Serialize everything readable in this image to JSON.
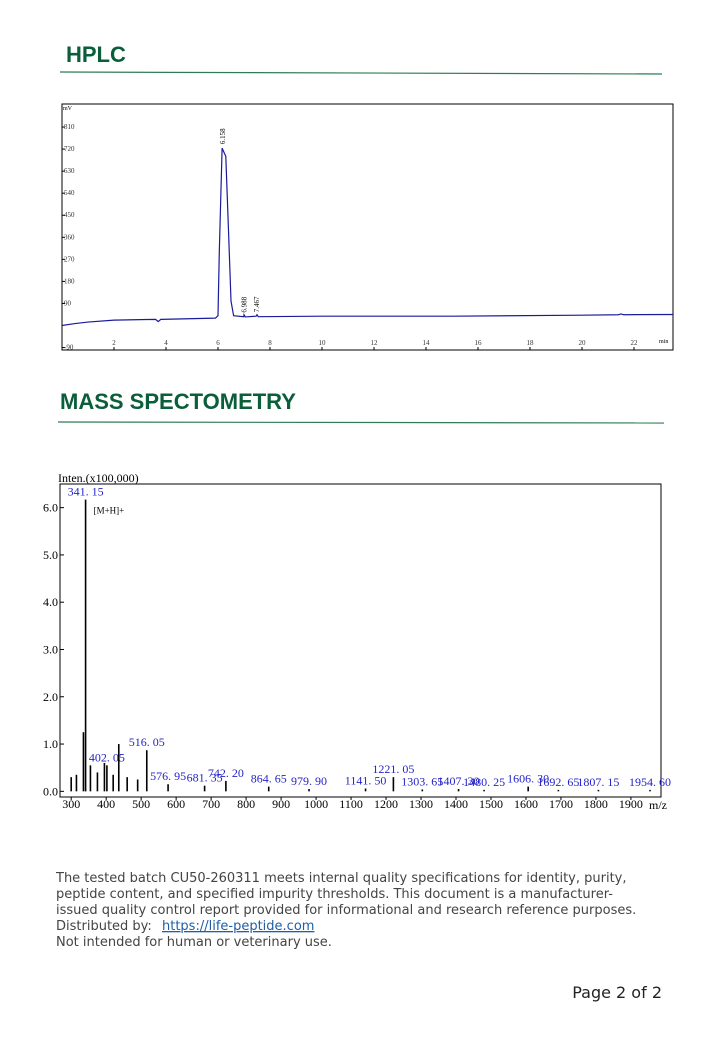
{
  "headings": [
    "HPLC",
    "MASS SPECTOMETRY"
  ],
  "chart_data": [
    {
      "type": "line",
      "color": "#1a1a9c",
      "x": [
        0,
        0.5,
        1,
        2,
        3,
        3.6,
        3.7,
        3.8,
        5.9,
        6.0,
        6.05,
        6.158,
        6.3,
        6.4,
        6.5,
        6.6,
        6.988,
        7.0,
        7.05,
        7.467,
        7.5,
        7.55,
        10,
        15,
        20,
        21.4,
        21.5,
        21.6,
        23.5
      ],
      "values": [
        0,
        8,
        14,
        22,
        24,
        25,
        16,
        25,
        30,
        40,
        300,
        724,
        690,
        400,
        100,
        40,
        36,
        44,
        35,
        38,
        44,
        36,
        38,
        38,
        42,
        44,
        47,
        44,
        45
      ],
      "xlim": [
        0,
        23.5
      ],
      "ylim": [
        -100,
        904
      ],
      "xticks": [
        2,
        4,
        6,
        8,
        10,
        12,
        14,
        16,
        18,
        20,
        22
      ],
      "yticks": [
        -90,
        90,
        180,
        270,
        360,
        450,
        540,
        630,
        720,
        810
      ],
      "y_unit": "mV",
      "x_unit": "min",
      "peak_labels": [
        6.158,
        6.988,
        7.467
      ]
    },
    {
      "type": "stick",
      "color": "#000000",
      "label_color": "#2424c8",
      "y_label": "Inten.(x100,000)",
      "x_label": "m/z",
      "annotation": "[M+H]+",
      "x": [
        300,
        315,
        335,
        341.15,
        355,
        375,
        395,
        402.05,
        420,
        436,
        460,
        490,
        516.05,
        576.95,
        681.35,
        742.2,
        864.65,
        979.9,
        1141.5,
        1221.05,
        1303.65,
        1407.3,
        1480.25,
        1606.3,
        1692.65,
        1807.15,
        1954.6
      ],
      "values": [
        0.3,
        0.35,
        1.25,
        6.17,
        0.55,
        0.4,
        0.6,
        0.55,
        0.35,
        1.0,
        0.3,
        0.25,
        0.87,
        0.15,
        0.12,
        0.22,
        0.1,
        0.05,
        0.06,
        0.3,
        0.04,
        0.05,
        0.03,
        0.1,
        0.03,
        0.03,
        0.03
      ],
      "value_labels": [
        null,
        null,
        null,
        "341. 15",
        null,
        null,
        null,
        "402. 05",
        null,
        null,
        null,
        null,
        "516. 05",
        "576. 95",
        "681. 35",
        "742. 20",
        "864. 65",
        "979. 90",
        "1141. 50",
        "1221. 05",
        "1303. 65",
        "1407. 30",
        "1480. 25",
        "1606. 30",
        "1692. 65",
        "1807. 15",
        "1954. 60"
      ],
      "xlim": [
        268,
        1986
      ],
      "ylim": [
        -0.12,
        6.5
      ],
      "xticks": [
        300,
        400,
        500,
        600,
        700,
        800,
        900,
        1000,
        1100,
        1200,
        1300,
        1400,
        1500,
        1600,
        1700,
        1800,
        1900
      ],
      "yticks": [
        {
          "value": 0,
          "label": "0.0"
        },
        {
          "value": 1,
          "label": "1.0"
        },
        {
          "value": 2,
          "label": "2.0"
        },
        {
          "value": 3,
          "label": "3.0"
        },
        {
          "value": 4,
          "label": "4.0"
        },
        {
          "value": 5,
          "label": "5.0"
        },
        {
          "value": 6,
          "label": "6.0"
        }
      ]
    }
  ],
  "notice": {
    "lines": [
      "The tested batch CU50-260311 meets internal quality specifications for identity, purity,",
      "peptide content, and specified impurity thresholds. This document is a manufacturer-",
      "issued quality control report provided for informational and research reference purposes."
    ],
    "distributed_label": "Distributed by:",
    "link": "https://life-peptide.com",
    "disclaimer": "Not intended for human or veterinary use."
  },
  "page_number": "Page 2 of 2"
}
